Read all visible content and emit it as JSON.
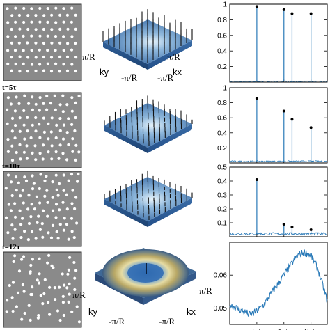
{
  "time_labels": [
    "t=5τ",
    "t=10τ",
    "t=12τ"
  ],
  "surface_axes": {
    "kx": "kx",
    "ky": "ky",
    "pi_r": "π/R",
    "neg_pi_r": "-π/R"
  },
  "colors": {
    "lattice_bg": "#8a8a8a",
    "particle": "#ffffff",
    "surface_blue": "#3e6fa8",
    "surface_light": "#d9ecf7",
    "ring_yellow": "#c8b878",
    "series_line": "#2a7ab8"
  },
  "chart_data": [
    {
      "type": "line",
      "panel": 1,
      "ylim": [
        0,
        1.0
      ],
      "yticks": [
        "0.2",
        "0.4",
        "0.6",
        "0.8",
        "1"
      ],
      "xlim": [
        0,
        7.2
      ],
      "baseline": 0.01,
      "peaks": [
        {
          "x": 2.0,
          "y": 0.97
        },
        {
          "x": 4.0,
          "y": 0.93
        },
        {
          "x": 4.6,
          "y": 0.88
        },
        {
          "x": 6.0,
          "y": 0.88
        }
      ]
    },
    {
      "type": "line",
      "panel": 2,
      "ylim": [
        0,
        1.0
      ],
      "yticks": [
        "0.2",
        "0.4",
        "0.6",
        "0.8",
        "1"
      ],
      "xlim": [
        0,
        7.2
      ],
      "baseline": 0.02,
      "peaks": [
        {
          "x": 2.0,
          "y": 0.86
        },
        {
          "x": 4.0,
          "y": 0.69
        },
        {
          "x": 4.6,
          "y": 0.58
        },
        {
          "x": 6.0,
          "y": 0.47
        }
      ]
    },
    {
      "type": "line",
      "panel": 3,
      "ylim": [
        0,
        0.5
      ],
      "yticks": [
        "0.1",
        "0.2",
        "0.3",
        "0.4",
        "0.5"
      ],
      "xlim": [
        0,
        7.2
      ],
      "baseline": 0.02,
      "peaks": [
        {
          "x": 2.0,
          "y": 0.41
        },
        {
          "x": 4.0,
          "y": 0.09
        },
        {
          "x": 4.6,
          "y": 0.07
        },
        {
          "x": 6.0,
          "y": 0.05
        }
      ]
    },
    {
      "type": "line",
      "panel": 4,
      "ylim": [
        0.045,
        0.07
      ],
      "yticks": [
        "0.05",
        "0.06"
      ],
      "xlim": [
        0,
        7.2
      ],
      "xticks": [
        "2π/a",
        "4π/a",
        "6π/a"
      ],
      "x": [
        0,
        0.5,
        1.0,
        1.5,
        2.0,
        2.5,
        3.0,
        3.5,
        4.0,
        4.5,
        5.0,
        5.5,
        6.0,
        6.5,
        7.0
      ],
      "y": [
        0.051,
        0.05,
        0.049,
        0.048,
        0.049,
        0.051,
        0.054,
        0.057,
        0.06,
        0.063,
        0.066,
        0.067,
        0.066,
        0.062,
        0.055
      ]
    }
  ]
}
